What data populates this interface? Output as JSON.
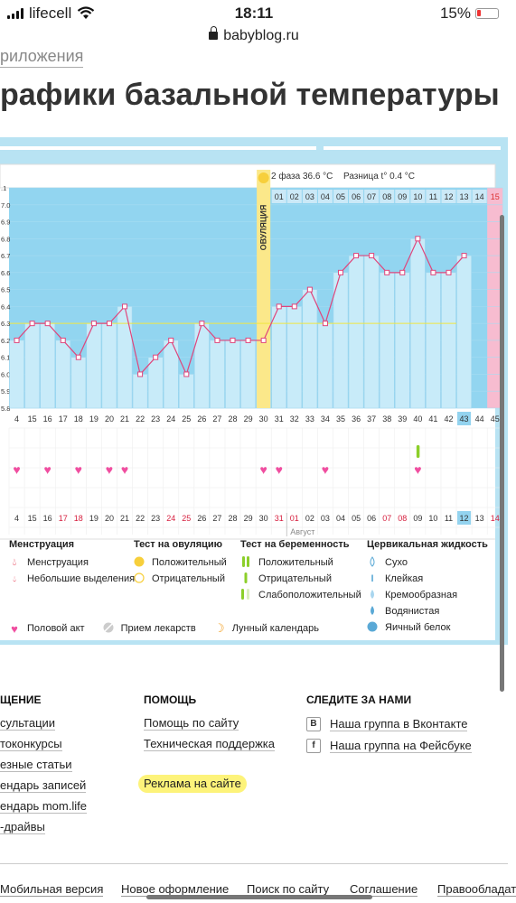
{
  "status_bar": {
    "carrier": "lifecell",
    "time": "18:11",
    "battery": "15%"
  },
  "browser": {
    "url": "babyblog.ru"
  },
  "breadcrumb": "риложения",
  "page_title": "рафики базальной температуры",
  "chart_data": {
    "type": "line",
    "temp_axis": [
      "37.1",
      "37.0",
      "36.9",
      "36.8",
      "36.7",
      "36.6",
      "36.5",
      "36.4",
      "36.3",
      "36.2",
      "36.1",
      "36.0",
      "35.9",
      "35.8"
    ],
    "temp_axis_display": [
      ".1",
      "7.0",
      "6.9",
      "6.8",
      "6.7",
      "6.6",
      "6.5",
      "6.4",
      "6.3",
      "6.2",
      "6.1",
      "6.0",
      "5.9",
      "5.8"
    ],
    "ylim": [
      35.8,
      37.1
    ],
    "cycle_days": [
      "4",
      "15",
      "16",
      "17",
      "18",
      "19",
      "20",
      "21",
      "22",
      "23",
      "24",
      "25",
      "26",
      "27",
      "28",
      "29",
      "30",
      "31",
      "32",
      "33",
      "34",
      "35",
      "36",
      "37",
      "38",
      "39",
      "40",
      "41",
      "42",
      "43",
      "44",
      "45"
    ],
    "temperatures": [
      36.2,
      36.3,
      36.3,
      36.2,
      36.1,
      36.3,
      36.3,
      36.4,
      36.0,
      36.1,
      36.2,
      36.0,
      36.3,
      36.2,
      36.2,
      36.2,
      36.2,
      36.4,
      36.4,
      36.5,
      36.3,
      36.6,
      36.7,
      36.7,
      36.6,
      36.6,
      36.8,
      36.6,
      36.6,
      36.7,
      null,
      null
    ],
    "coverline": 36.3,
    "ovulation_label": "ОВУЛЯЦИЯ",
    "ovulation_day": "30",
    "phase2_label": "2 фаза",
    "phase2_temp": "36.6 °C",
    "diff_label": "Разница t°",
    "diff_value": "0.4 °C",
    "phase2_day_numbers": [
      "01",
      "02",
      "03",
      "04",
      "05",
      "06",
      "07",
      "08",
      "09",
      "10",
      "11",
      "12",
      "13",
      "14",
      "15"
    ],
    "highlight_day": "43",
    "calendar_dates": [
      {
        "d": "4",
        "red": false
      },
      {
        "d": "15",
        "red": false
      },
      {
        "d": "16",
        "red": false
      },
      {
        "d": "17",
        "red": true
      },
      {
        "d": "18",
        "red": true
      },
      {
        "d": "19",
        "red": false
      },
      {
        "d": "20",
        "red": false
      },
      {
        "d": "21",
        "red": false
      },
      {
        "d": "22",
        "red": false
      },
      {
        "d": "23",
        "red": false
      },
      {
        "d": "24",
        "red": true
      },
      {
        "d": "25",
        "red": true
      },
      {
        "d": "26",
        "red": false
      },
      {
        "d": "27",
        "red": false
      },
      {
        "d": "28",
        "red": false
      },
      {
        "d": "29",
        "red": false
      },
      {
        "d": "30",
        "red": false
      },
      {
        "d": "31",
        "red": true
      },
      {
        "d": "01",
        "red": true
      },
      {
        "d": "02",
        "red": false
      },
      {
        "d": "03",
        "red": false
      },
      {
        "d": "04",
        "red": false
      },
      {
        "d": "05",
        "red": false
      },
      {
        "d": "06",
        "red": false
      },
      {
        "d": "07",
        "red": true
      },
      {
        "d": "08",
        "red": true
      },
      {
        "d": "09",
        "red": false
      },
      {
        "d": "10",
        "red": false
      },
      {
        "d": "11",
        "red": false
      },
      {
        "d": "12",
        "red": false
      },
      {
        "d": "13",
        "red": false
      },
      {
        "d": "14",
        "red": true
      }
    ],
    "month_label": "Август",
    "heart_days": [
      0,
      2,
      4,
      6,
      7,
      16,
      17,
      20,
      26
    ],
    "preg_test_day": 26
  },
  "legend": {
    "menstruation": {
      "title": "Менструация",
      "items": [
        "Менструация",
        "Небольшие выделения"
      ]
    },
    "ovulation_test": {
      "title": "Тест на овуляцию",
      "items": [
        "Положительный",
        "Отрицательный"
      ]
    },
    "pregnancy_test": {
      "title": "Тест на беременность",
      "items": [
        "Положительный",
        "Отрицательный",
        "Слабоположительный"
      ]
    },
    "cervical": {
      "title": "Цервикальная жидкость",
      "items": [
        "Сухо",
        "Клейкая",
        "Кремообразная",
        "Водянистая",
        "Яичный белок"
      ]
    },
    "other": [
      "Половой акт",
      "Прием лекарств",
      "Лунный календарь"
    ]
  },
  "footer": {
    "col1": {
      "title": "ЩЕНИЕ",
      "links": [
        "сультации",
        "токонкурсы",
        "езные статьи",
        "ендарь записей",
        "ендарь mom.life",
        "-драйвы"
      ]
    },
    "col2": {
      "title": "ПОМОЩЬ",
      "links": [
        "Помощь по сайту",
        "Техническая поддержка"
      ],
      "ad": "Реклама на сайте"
    },
    "col3": {
      "title": "СЛЕДИТЕ ЗА НАМИ",
      "links": [
        "Наша группа в Вконтакте",
        "Наша группа на Фейсбуке"
      ]
    }
  },
  "bottom_nav": [
    "Мобильная версия",
    "Новое оформление",
    "Поиск по сайту",
    "Соглашение",
    "Правообладат"
  ],
  "colors": {
    "chart_bg": "#b8e3f3",
    "plot_bg": "#92d5f0",
    "bar": "#c8ebf9",
    "line": "#e0457b",
    "ovulation": "#fbe88a",
    "heart": "#f04ea0",
    "pink_day": "#f7bcd0"
  }
}
